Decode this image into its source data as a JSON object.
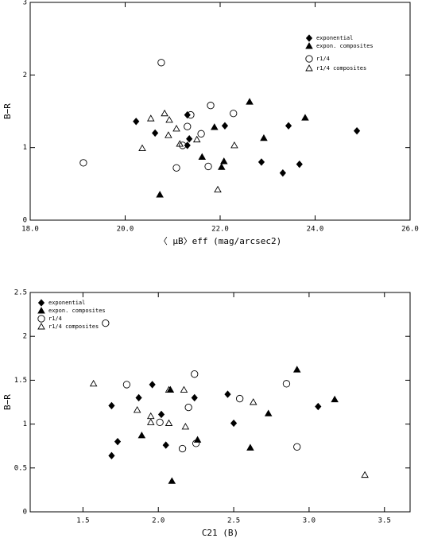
{
  "chart_data": [
    {
      "type": "scatter",
      "x_label": "〈 μB〉eff (mag/arcsec2)",
      "y_label": "B−R",
      "xlim": [
        18.0,
        26.0
      ],
      "ylim": [
        0,
        3
      ],
      "xticks": [
        {
          "value": 18.0,
          "label": "18.0"
        },
        {
          "value": 20.0,
          "label": "20.0"
        },
        {
          "value": 22.0,
          "label": "22.0"
        },
        {
          "value": 24.0,
          "label": "24.0"
        },
        {
          "value": 26.0,
          "label": "26.0"
        }
      ],
      "yticks": [
        0,
        1,
        2,
        3
      ],
      "legend": "upper right",
      "series": [
        {
          "name": "exponential",
          "color": "#000000",
          "marker": "diamond",
          "filled": true,
          "x": [
            20.23,
            20.63,
            21.31,
            21.31,
            21.35,
            22.1,
            22.87,
            23.32,
            23.44,
            23.67,
            24.88
          ],
          "values": [
            1.36,
            1.2,
            1.45,
            1.03,
            1.12,
            1.3,
            0.8,
            0.65,
            1.3,
            0.77,
            1.23
          ]
        },
        {
          "name": "expon. composites",
          "color": "#000000",
          "marker": "triangle",
          "filled": true,
          "x": [
            20.73,
            21.62,
            21.88,
            22.03,
            22.08,
            22.62,
            22.92,
            23.79
          ],
          "values": [
            0.35,
            0.87,
            1.28,
            0.73,
            0.81,
            1.63,
            1.13,
            1.41
          ]
        },
        {
          "name": "r1/4",
          "color": "#000000",
          "marker": "circle",
          "filled": false,
          "x": [
            19.12,
            20.76,
            21.08,
            21.21,
            21.31,
            21.38,
            21.6,
            21.75,
            21.8,
            22.28
          ],
          "values": [
            0.79,
            2.17,
            0.72,
            1.03,
            1.29,
            1.45,
            1.19,
            0.74,
            1.58,
            1.47
          ]
        },
        {
          "name": "r1/4 composites",
          "color": "#000000",
          "marker": "triangle",
          "filled": false,
          "x": [
            20.36,
            20.54,
            20.83,
            20.93,
            20.91,
            21.08,
            21.15,
            21.51,
            21.95,
            22.3
          ],
          "values": [
            0.99,
            1.4,
            1.47,
            1.38,
            1.17,
            1.26,
            1.05,
            1.11,
            0.42,
            1.03
          ]
        }
      ]
    },
    {
      "type": "scatter",
      "x_label": "C21 (B)",
      "y_label": "B−R",
      "xlim": [
        1.15,
        3.67
      ],
      "ylim": [
        0,
        2.5
      ],
      "xticks": [
        {
          "value": 1.5,
          "label": "1.5"
        },
        {
          "value": 2.0,
          "label": "2.0"
        },
        {
          "value": 2.5,
          "label": "2.5"
        },
        {
          "value": 3.0,
          "label": "3.0"
        },
        {
          "value": 3.5,
          "label": "3.5"
        }
      ],
      "yticks": [
        0,
        0.5,
        1,
        1.5,
        2,
        2.5
      ],
      "legend": "upper left",
      "series": [
        {
          "name": "exponential",
          "color": "#000000",
          "marker": "diamond",
          "filled": true,
          "x": [
            1.69,
            1.73,
            1.69,
            1.87,
            1.96,
            2.02,
            2.05,
            2.24,
            2.46,
            2.5,
            3.06
          ],
          "values": [
            1.21,
            0.8,
            0.64,
            1.3,
            1.45,
            1.11,
            0.76,
            1.3,
            1.34,
            1.01,
            1.2
          ]
        },
        {
          "name": "expon. composites",
          "color": "#000000",
          "marker": "triangle",
          "filled": true,
          "x": [
            1.89,
            2.08,
            2.09,
            2.26,
            2.61,
            2.73,
            2.92,
            3.17
          ],
          "values": [
            0.87,
            1.39,
            0.35,
            0.82,
            0.73,
            1.12,
            1.62,
            1.28
          ]
        },
        {
          "name": "r1/4",
          "color": "#000000",
          "marker": "circle",
          "filled": false,
          "x": [
            1.65,
            1.79,
            2.01,
            2.16,
            2.2,
            2.24,
            2.25,
            2.54,
            2.85,
            2.92
          ],
          "values": [
            2.15,
            1.45,
            1.02,
            0.72,
            1.19,
            1.57,
            0.78,
            1.29,
            1.46,
            0.74
          ]
        },
        {
          "name": "r1/4 composites",
          "color": "#000000",
          "marker": "triangle",
          "filled": false,
          "x": [
            1.57,
            1.86,
            1.95,
            1.95,
            2.07,
            2.07,
            2.17,
            2.18,
            2.63,
            3.37
          ],
          "values": [
            1.46,
            1.16,
            1.09,
            1.02,
            1.39,
            1.01,
            1.39,
            0.97,
            1.25,
            0.42
          ]
        }
      ]
    }
  ]
}
